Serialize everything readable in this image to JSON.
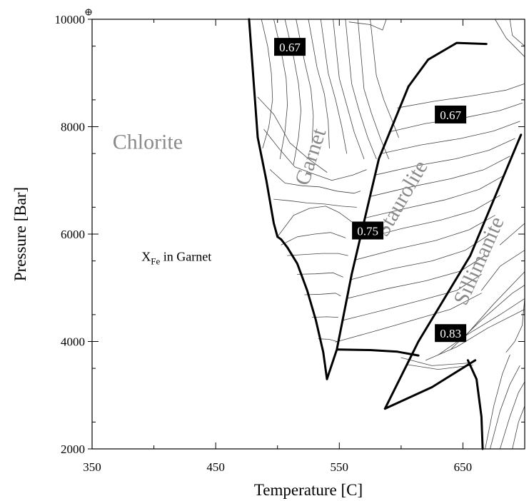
{
  "chart_data": {
    "type": "line",
    "title": "",
    "xlabel": "Temperature [C]",
    "ylabel": "Pressure [Bar]",
    "xlim": [
      350,
      700
    ],
    "ylim": [
      2000,
      10000
    ],
    "x_ticks": [
      350,
      450,
      550,
      650
    ],
    "y_ticks": [
      2000,
      4000,
      6000,
      8000,
      10000
    ],
    "x_ticklabels": [
      "350",
      "450",
      "550",
      "650"
    ],
    "y_ticklabels": [
      "2000",
      "4000",
      "6000",
      "8000",
      "10000"
    ],
    "grid": false,
    "colors": {
      "boundary": "#000000",
      "contour": "#444444",
      "phase_label": "#8a8a8a",
      "label_box": "#000000",
      "label_text": "#ffffff"
    },
    "phase_labels": [
      {
        "text": "Chlorite",
        "x": 395,
        "y": 7590,
        "rotate": 0
      },
      {
        "text": "Garnet",
        "x": 532,
        "y": 7400,
        "rotate": -72
      },
      {
        "text": "Staurolite",
        "x": 605,
        "y": 6600,
        "rotate": -60
      },
      {
        "text": "Sillimanite",
        "x": 668,
        "y": 5450,
        "rotate": -66
      }
    ],
    "annotation": {
      "text": "X",
      "subscript": "Fe",
      "suffix": " in Garnet",
      "x": 390,
      "y": 5500
    },
    "contour_labels": [
      {
        "text": "0.67",
        "x": 510,
        "y": 9480
      },
      {
        "text": "0.67",
        "x": 640,
        "y": 8220
      },
      {
        "text": "0.75",
        "x": 573,
        "y": 6060
      },
      {
        "text": "0.83",
        "x": 640,
        "y": 4150
      }
    ],
    "series": [
      {
        "role": "boundary",
        "x": [
          477,
          484,
          491,
          497,
          500,
          503,
          508,
          516,
          524,
          531,
          537,
          540
        ],
        "y": [
          10000,
          7800,
          7000,
          6200,
          5950,
          5900,
          5750,
          5450,
          4950,
          4400,
          3800,
          3300
        ]
      },
      {
        "role": "boundary",
        "x": [
          540,
          548,
          560,
          582,
          606
        ],
        "y": [
          3300,
          3850,
          5250,
          7400,
          8750
        ]
      },
      {
        "role": "boundary",
        "x": [
          606,
          622,
          645,
          669
        ],
        "y": [
          8750,
          9250,
          9560,
          9540
        ]
      },
      {
        "role": "boundary",
        "x": [
          587,
          614,
          656,
          697
        ],
        "y": [
          2750,
          4000,
          5600,
          7850
        ]
      },
      {
        "role": "boundary",
        "x": [
          549,
          575,
          597,
          614
        ],
        "y": [
          3850,
          3840,
          3810,
          3740
        ]
      },
      {
        "role": "boundary",
        "x": [
          587,
          625,
          660
        ],
        "y": [
          2750,
          3150,
          3650
        ]
      },
      {
        "role": "boundary",
        "x": [
          654,
          661,
          665,
          666
        ],
        "y": [
          3650,
          3300,
          2600,
          2000
        ]
      },
      {
        "role": "contour",
        "x": [
          500,
          513,
          526,
          539,
          550,
          560
        ],
        "y": [
          5950,
          6350,
          6480,
          6520,
          6400,
          6230
        ]
      },
      {
        "role": "contour",
        "x": [
          503,
          516,
          530,
          543,
          555
        ],
        "y": [
          5800,
          5950,
          6000,
          6030,
          5930
        ]
      },
      {
        "role": "contour",
        "x": [
          508,
          522,
          536,
          549,
          557
        ],
        "y": [
          5600,
          5620,
          5640,
          5640,
          5600
        ]
      },
      {
        "role": "contour",
        "x": [
          516,
          531,
          545,
          553
        ],
        "y": [
          5250,
          5260,
          5280,
          5200
        ]
      },
      {
        "role": "contour",
        "x": [
          522,
          535,
          547,
          551
        ],
        "y": [
          4870,
          4880,
          4900,
          4850
        ]
      },
      {
        "role": "contour",
        "x": [
          528,
          540,
          549
        ],
        "y": [
          4450,
          4460,
          4450
        ]
      },
      {
        "role": "contour",
        "x": [
          533,
          542,
          548
        ],
        "y": [
          4050,
          4040,
          4000
        ]
      },
      {
        "role": "contour",
        "x": [
          484,
          497,
          510,
          525,
          540
        ],
        "y": [
          8550,
          8230,
          7700,
          7400,
          7150
        ]
      },
      {
        "role": "contour",
        "x": [
          489,
          501,
          514,
          528,
          544,
          561,
          572
        ],
        "y": [
          7950,
          7600,
          7250,
          7130,
          7000,
          7100,
          7200
        ]
      },
      {
        "role": "contour",
        "x": [
          494,
          506,
          520,
          534,
          548,
          562,
          567
        ],
        "y": [
          7200,
          6950,
          6900,
          6880,
          6800,
          6760,
          6800
        ]
      },
      {
        "role": "contour",
        "x": [
          497,
          510,
          524,
          538,
          552,
          564
        ],
        "y": [
          6650,
          6620,
          6580,
          6560,
          6520,
          6500
        ]
      },
      {
        "role": "contour",
        "x": [
          487,
          492,
          495,
          496,
          493,
          488
        ],
        "y": [
          10000,
          9500,
          9000,
          8500,
          8000,
          7600
        ]
      },
      {
        "role": "contour",
        "x": [
          497,
          503,
          507,
          508,
          506,
          502
        ],
        "y": [
          10000,
          9400,
          8900,
          8400,
          7900,
          7400
        ]
      },
      {
        "role": "contour",
        "x": [
          506,
          513,
          517,
          519,
          517,
          513
        ],
        "y": [
          10000,
          9300,
          8800,
          8300,
          7800,
          7300
        ]
      },
      {
        "role": "contour",
        "x": [
          515,
          522,
          527,
          529,
          528
        ],
        "y": [
          10000,
          9200,
          8700,
          8200,
          7700
        ]
      },
      {
        "role": "contour",
        "x": [
          525,
          532,
          538,
          541,
          542
        ],
        "y": [
          10000,
          9100,
          8600,
          8100,
          7600
        ]
      },
      {
        "role": "contour",
        "x": [
          535,
          541,
          547,
          552,
          556
        ],
        "y": [
          10000,
          9000,
          8500,
          8000,
          7500
        ]
      },
      {
        "role": "contour",
        "x": [
          545,
          550,
          556,
          562,
          570
        ],
        "y": [
          10000,
          8900,
          8400,
          7900,
          7400
        ]
      },
      {
        "role": "contour",
        "x": [
          555,
          560,
          566,
          573,
          580
        ],
        "y": [
          10000,
          8800,
          8300,
          7800,
          7400
        ]
      },
      {
        "role": "contour",
        "x": [
          565,
          570,
          576,
          583,
          590
        ],
        "y": [
          10000,
          8700,
          8250,
          7800,
          7400
        ]
      },
      {
        "role": "contour",
        "x": [
          575,
          580,
          586,
          593,
          598
        ],
        "y": [
          10000,
          8950,
          8500,
          8100,
          7800
        ]
      },
      {
        "role": "contour",
        "x": [
          558,
          575,
          585,
          588
        ],
        "y": [
          9950,
          9900,
          9800,
          10000
        ]
      },
      {
        "role": "contour",
        "x": [
          547,
          580,
          610,
          640,
          665
        ],
        "y": [
          3990,
          4200,
          4400,
          4600,
          4900
        ]
      },
      {
        "role": "contour",
        "x": [
          552,
          585,
          615,
          645,
          665
        ],
        "y": [
          4390,
          4580,
          4760,
          4950,
          5250
        ]
      },
      {
        "role": "contour",
        "x": [
          556,
          588,
          620,
          648,
          668
        ],
        "y": [
          4800,
          4980,
          5130,
          5310,
          5600
        ]
      },
      {
        "role": "contour",
        "x": [
          559,
          592,
          625,
          652,
          672
        ],
        "y": [
          5150,
          5350,
          5500,
          5700,
          6000
        ]
      },
      {
        "role": "contour",
        "x": [
          563,
          596,
          628,
          655,
          676
        ],
        "y": [
          5520,
          5720,
          5880,
          6080,
          6350
        ]
      },
      {
        "role": "contour",
        "x": [
          567,
          600,
          632,
          659,
          680
        ],
        "y": [
          5900,
          6100,
          6260,
          6440,
          6720
        ]
      },
      {
        "role": "contour",
        "x": [
          571,
          604,
          636,
          663,
          684
        ],
        "y": [
          6300,
          6480,
          6640,
          6830,
          7100
        ]
      },
      {
        "role": "contour",
        "x": [
          575,
          608,
          640,
          667,
          688
        ],
        "y": [
          6700,
          6880,
          7030,
          7200,
          7450
        ]
      },
      {
        "role": "contour",
        "x": [
          579,
          612,
          644,
          671,
          692
        ],
        "y": [
          7100,
          7270,
          7400,
          7560,
          7780
        ]
      },
      {
        "role": "contour",
        "x": [
          584,
          616,
          648,
          675,
          696
        ],
        "y": [
          7500,
          7660,
          7780,
          7920,
          8100
        ]
      },
      {
        "role": "contour",
        "x": [
          590,
          620,
          652,
          680,
          698
        ],
        "y": [
          7900,
          8060,
          8170,
          8300,
          8440
        ]
      },
      {
        "role": "contour",
        "x": [
          597,
          626,
          656,
          685,
          700
        ],
        "y": [
          8350,
          8470,
          8570,
          8680,
          8800
        ]
      },
      {
        "role": "contour",
        "x": [
          620,
          645,
          670,
          700
        ],
        "y": [
          3650,
          3900,
          4250,
          4600
        ]
      },
      {
        "role": "contour",
        "x": [
          630,
          655,
          680,
          700
        ],
        "y": [
          3750,
          4150,
          4500,
          4800
        ]
      },
      {
        "role": "contour",
        "x": [
          640,
          665,
          690,
          700
        ],
        "y": [
          3850,
          4400,
          4900,
          5050
        ]
      },
      {
        "role": "contour",
        "x": [
          650,
          675,
          700
        ],
        "y": [
          4050,
          4700,
          5300
        ]
      },
      {
        "role": "contour",
        "x": [
          665,
          680,
          700
        ],
        "y": [
          4950,
          5400,
          5700
        ]
      },
      {
        "role": "contour",
        "x": [
          680,
          690,
          700
        ],
        "y": [
          5800,
          6000,
          6200
        ]
      },
      {
        "role": "contour",
        "x": [
          600,
          625,
          655
        ],
        "y": [
          3700,
          3550,
          3600
        ]
      },
      {
        "role": "contour",
        "x": [
          605,
          630,
          658
        ],
        "y": [
          3570,
          3480,
          3560
        ]
      },
      {
        "role": "contour",
        "x": [
          668,
          675,
          682,
          688
        ],
        "y": [
          2000,
          2800,
          3400,
          3750
        ]
      },
      {
        "role": "contour",
        "x": [
          672,
          680,
          688,
          696
        ],
        "y": [
          2000,
          2700,
          3200,
          3550
        ]
      },
      {
        "role": "contour",
        "x": [
          680,
          688,
          695,
          700
        ],
        "y": [
          2000,
          2600,
          3050,
          3250
        ]
      },
      {
        "role": "contour",
        "x": [
          685,
          692,
          698,
          700
        ],
        "y": [
          3800,
          4000,
          4300,
          4800
        ]
      },
      {
        "role": "contour",
        "x": [
          690,
          695,
          700
        ],
        "y": [
          2000,
          2500,
          2800
        ]
      },
      {
        "role": "contour",
        "x": [
          688,
          690,
          695,
          700
        ],
        "y": [
          10000,
          9700,
          9600,
          9500
        ]
      },
      {
        "role": "contour",
        "x": [
          676,
          685,
          700
        ],
        "y": [
          10000,
          9650,
          9300
        ]
      }
    ]
  }
}
